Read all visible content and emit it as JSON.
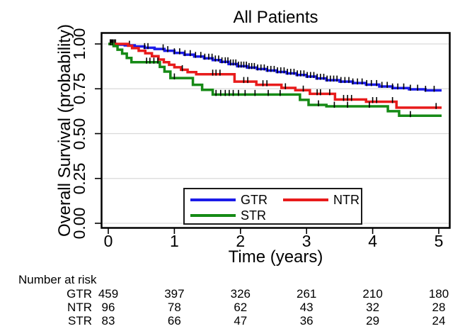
{
  "chart_data": {
    "type": "line",
    "subtype": "kaplan-meier-step",
    "title": "All Patients",
    "xlabel": "Time (years)",
    "ylabel": "Overall Survival (probability)",
    "xlim": [
      0,
      5
    ],
    "ylim": [
      0,
      1
    ],
    "grid": "horizontal",
    "legend_position": "inside-bottom-center",
    "x_ticks": [
      {
        "value": 0,
        "label": "0"
      },
      {
        "value": 1,
        "label": "1"
      },
      {
        "value": 2,
        "label": "2"
      },
      {
        "value": 3,
        "label": "3"
      },
      {
        "value": 4,
        "label": "4"
      },
      {
        "value": 5,
        "label": "5"
      }
    ],
    "y_ticks": [
      {
        "value": 0.0,
        "label": "0.00"
      },
      {
        "value": 0.25,
        "label": "0.25"
      },
      {
        "value": 0.5,
        "label": "0.50"
      },
      {
        "value": 0.75,
        "label": "0.75"
      },
      {
        "value": 1.0,
        "label": "1.00"
      }
    ],
    "series": [
      {
        "name": "GTR",
        "color": "#1b1be8",
        "steps": [
          [
            0,
            1.0
          ],
          [
            0.12,
            0.996
          ],
          [
            0.25,
            0.992
          ],
          [
            0.4,
            0.986
          ],
          [
            0.55,
            0.979
          ],
          [
            0.7,
            0.972
          ],
          [
            0.85,
            0.962
          ],
          [
            1.0,
            0.95
          ],
          [
            1.15,
            0.94
          ],
          [
            1.3,
            0.93
          ],
          [
            1.45,
            0.92
          ],
          [
            1.58,
            0.91
          ],
          [
            1.7,
            0.9
          ],
          [
            1.82,
            0.888
          ],
          [
            1.95,
            0.876
          ],
          [
            2.1,
            0.868
          ],
          [
            2.25,
            0.86
          ],
          [
            2.4,
            0.852
          ],
          [
            2.55,
            0.844
          ],
          [
            2.7,
            0.836
          ],
          [
            2.85,
            0.827
          ],
          [
            3.0,
            0.818
          ],
          [
            3.15,
            0.808
          ],
          [
            3.3,
            0.798
          ],
          [
            3.5,
            0.79
          ],
          [
            3.7,
            0.782
          ],
          [
            3.9,
            0.773
          ],
          [
            4.1,
            0.763
          ],
          [
            4.3,
            0.754
          ],
          [
            4.55,
            0.747
          ],
          [
            4.8,
            0.741
          ]
        ],
        "censor_times": [
          0.04,
          0.07,
          0.11,
          0.32,
          0.55,
          0.6,
          0.83,
          0.9,
          1.0,
          1.08,
          1.16,
          1.24,
          1.32,
          1.4,
          1.46,
          1.52,
          1.57,
          1.62,
          1.67,
          1.72,
          1.77,
          1.81,
          1.85,
          1.89,
          1.93,
          1.97,
          2.01,
          2.05,
          2.09,
          2.13,
          2.17,
          2.21,
          2.26,
          2.31,
          2.36,
          2.41,
          2.46,
          2.51,
          2.56,
          2.61,
          2.66,
          2.71,
          2.76,
          2.81,
          2.86,
          2.91,
          2.96,
          3.01,
          3.06,
          3.11,
          3.16,
          3.21,
          3.26,
          3.31,
          3.36,
          3.41,
          3.46,
          3.52,
          3.58,
          3.64,
          3.7,
          3.77,
          3.84,
          3.91,
          3.98,
          4.06,
          4.14,
          4.22,
          4.3,
          4.38,
          4.47,
          4.57,
          4.68,
          4.8,
          4.93
        ]
      },
      {
        "name": "NTR",
        "color": "#e81b1b",
        "steps": [
          [
            0,
            1.0
          ],
          [
            0.3,
            0.99
          ],
          [
            0.36,
            0.977
          ],
          [
            0.46,
            0.962
          ],
          [
            0.56,
            0.948
          ],
          [
            0.66,
            0.932
          ],
          [
            0.76,
            0.913
          ],
          [
            0.84,
            0.898
          ],
          [
            0.92,
            0.884
          ],
          [
            1.0,
            0.87
          ],
          [
            1.1,
            0.856
          ],
          [
            1.2,
            0.843
          ],
          [
            1.33,
            0.831
          ],
          [
            1.91,
            0.79
          ],
          [
            2.24,
            0.772
          ],
          [
            2.62,
            0.755
          ],
          [
            2.83,
            0.742
          ],
          [
            3.05,
            0.722
          ],
          [
            3.43,
            0.69
          ],
          [
            3.9,
            0.678
          ],
          [
            4.36,
            0.645
          ]
        ],
        "censor_times": [
          0.05,
          0.09,
          1.12,
          1.58,
          1.63,
          1.69,
          2.05,
          2.11,
          2.34,
          2.4,
          2.68,
          2.95,
          3.16,
          3.21,
          3.35,
          3.56,
          3.62,
          3.68,
          4.0,
          4.06,
          4.3,
          4.96
        ]
      },
      {
        "name": "STR",
        "color": "#168a16",
        "steps": [
          [
            0,
            1.0
          ],
          [
            0.08,
            0.988
          ],
          [
            0.14,
            0.968
          ],
          [
            0.21,
            0.946
          ],
          [
            0.28,
            0.922
          ],
          [
            0.35,
            0.898
          ],
          [
            0.78,
            0.872
          ],
          [
            0.85,
            0.846
          ],
          [
            0.94,
            0.81
          ],
          [
            1.28,
            0.772
          ],
          [
            1.42,
            0.744
          ],
          [
            1.58,
            0.718
          ],
          [
            2.9,
            0.688
          ],
          [
            3.03,
            0.66
          ],
          [
            3.3,
            0.652
          ],
          [
            4.23,
            0.625
          ],
          [
            4.4,
            0.6
          ]
        ],
        "censor_times": [
          0.03,
          0.06,
          0.58,
          0.63,
          0.69,
          0.75,
          1.0,
          1.63,
          1.7,
          1.77,
          1.83,
          1.89,
          1.97,
          2.07,
          2.22,
          2.42,
          2.6,
          3.18,
          3.42,
          3.62,
          3.95,
          4.57
        ]
      }
    ]
  },
  "risk_table": {
    "heading": "Number at risk",
    "time_points": [
      0,
      1,
      2,
      3,
      4,
      5
    ],
    "rows": [
      {
        "label": "GTR",
        "counts": [
          "459",
          "397",
          "326",
          "261",
          "210",
          "180"
        ]
      },
      {
        "label": "NTR",
        "counts": [
          "96",
          "78",
          "62",
          "43",
          "32",
          "28"
        ]
      },
      {
        "label": "STR",
        "counts": [
          "83",
          "66",
          "47",
          "36",
          "29",
          "24"
        ]
      }
    ]
  },
  "colors": {
    "axis": "#000000",
    "grid": "#d9d9d9",
    "censor_mark": "#000000",
    "background": "#ffffff"
  }
}
